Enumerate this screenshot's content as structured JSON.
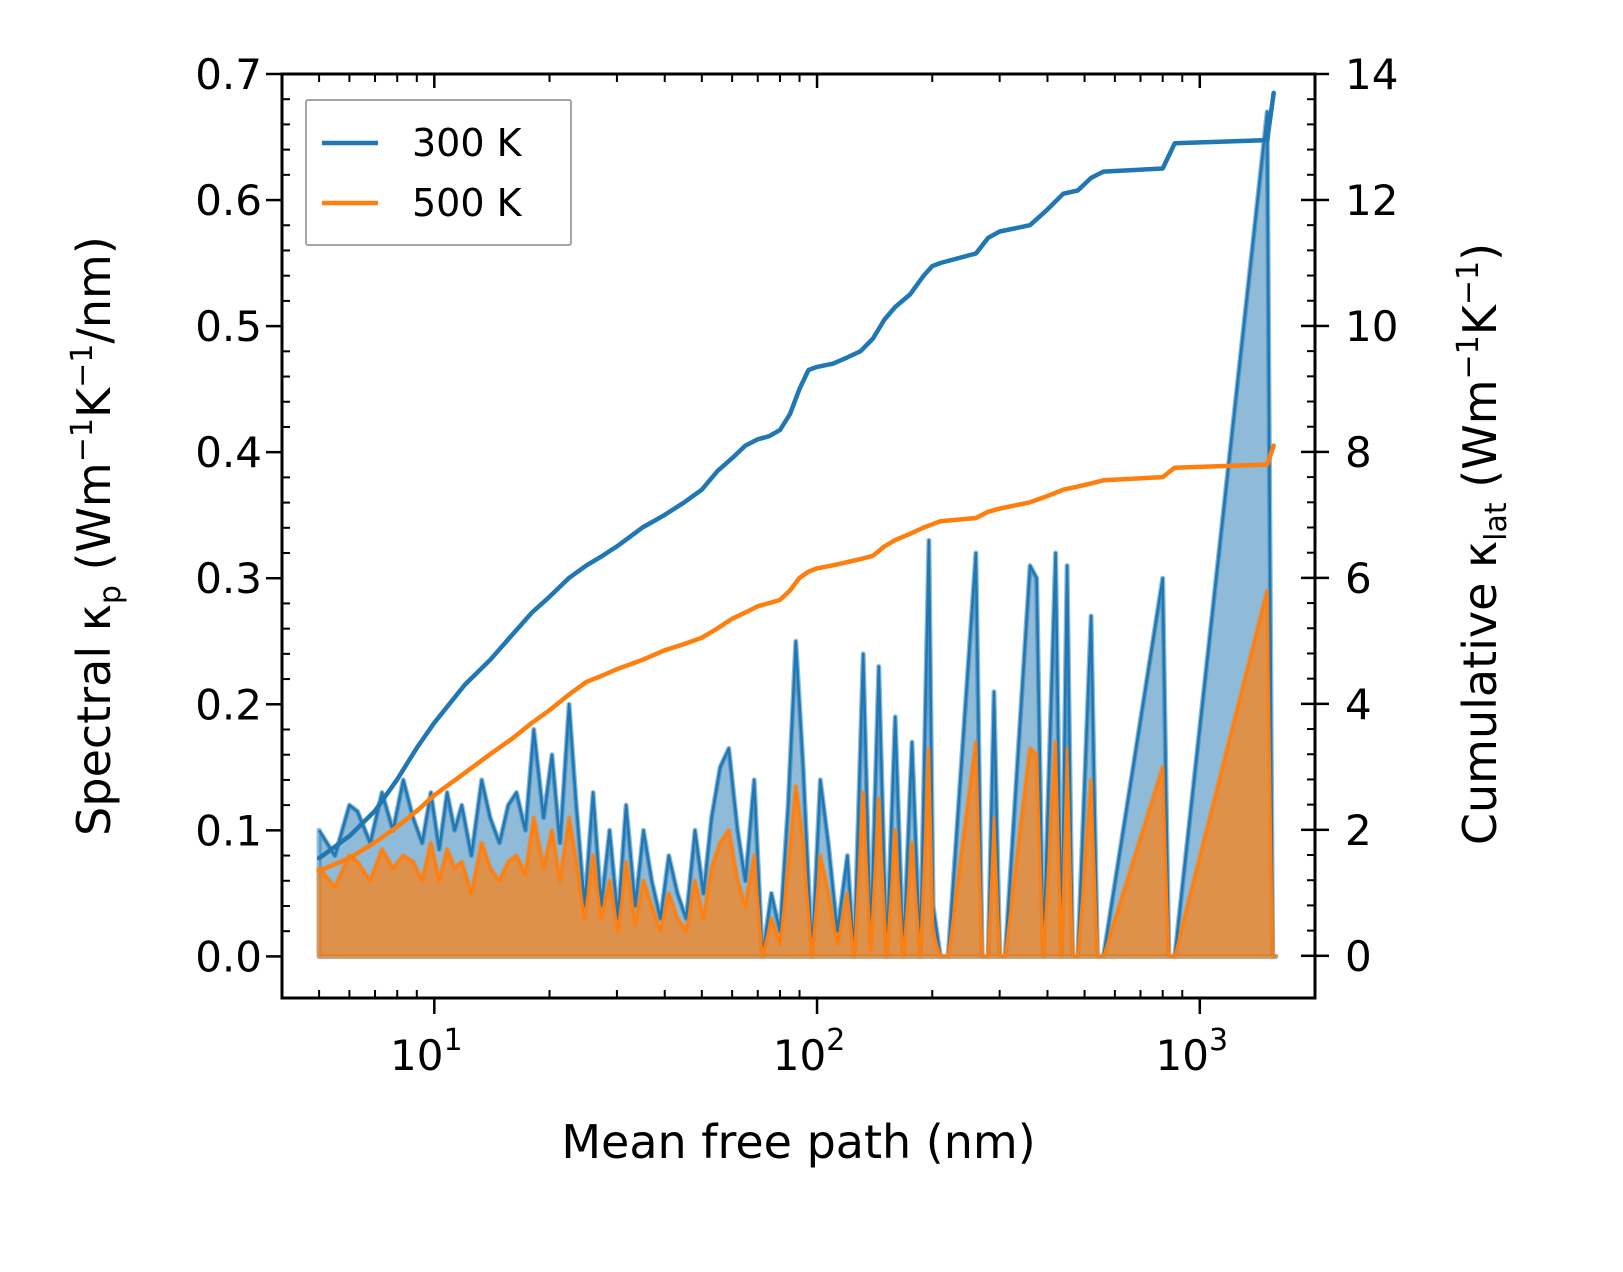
{
  "chart_data": {
    "type": "line",
    "title": "",
    "xlabel": "Mean free path (nm)",
    "ylabel_left": {
      "main": "Spectral κ",
      "sub": "p",
      "unit_open": " (Wm",
      "sup1": "−1",
      "unit_mid": "K",
      "sup2": "−1",
      "unit_close": "/nm)"
    },
    "ylabel_right": {
      "main": "Cumulative κ",
      "sub": "lat",
      "unit_open": " (Wm",
      "sup1": "−1",
      "unit_mid": "K",
      "sup2": "−1",
      "unit_close": ")"
    },
    "xscale": "log",
    "xlim": [
      4,
      2000
    ],
    "ylim_left": [
      -0.033,
      0.7
    ],
    "ylim_right": [
      -0.67,
      14
    ],
    "x_ticks": [
      {
        "value": 10,
        "base": "10",
        "exp": "1"
      },
      {
        "value": 100,
        "base": "10",
        "exp": "2"
      },
      {
        "value": 1000,
        "base": "10",
        "exp": "3"
      }
    ],
    "y_ticks_left": [
      {
        "value": 0.0,
        "label": "0.0"
      },
      {
        "value": 0.1,
        "label": "0.1"
      },
      {
        "value": 0.2,
        "label": "0.2"
      },
      {
        "value": 0.3,
        "label": "0.3"
      },
      {
        "value": 0.4,
        "label": "0.4"
      },
      {
        "value": 0.5,
        "label": "0.5"
      },
      {
        "value": 0.6,
        "label": "0.6"
      },
      {
        "value": 0.7,
        "label": "0.7"
      }
    ],
    "y_ticks_right": [
      {
        "value": 0,
        "label": "0"
      },
      {
        "value": 2,
        "label": "2"
      },
      {
        "value": 4,
        "label": "4"
      },
      {
        "value": 6,
        "label": "6"
      },
      {
        "value": 8,
        "label": "8"
      },
      {
        "value": 10,
        "label": "10"
      },
      {
        "value": 12,
        "label": "12"
      },
      {
        "value": 14,
        "label": "14"
      }
    ],
    "legend": {
      "location": "top-left",
      "entries": [
        {
          "name": "300 K",
          "color": "#1f77b4"
        },
        {
          "name": "500 K",
          "color": "#ff7f0e"
        }
      ]
    },
    "spectral_series": [
      {
        "name": "300 K",
        "color": "#1f77b4",
        "axis": "left",
        "x": [
          5.0,
          5.5,
          6.0,
          6.3,
          6.8,
          7.3,
          7.8,
          8.3,
          8.8,
          9.3,
          9.8,
          10.3,
          10.8,
          11.3,
          11.8,
          12.5,
          13.3,
          14.0,
          14.8,
          15.6,
          16.4,
          17.3,
          18.2,
          19.3,
          20.3,
          21.3,
          22.5,
          23.5,
          24.7,
          26.0,
          27.3,
          28.7,
          30.2,
          31.7,
          33.5,
          35.2,
          37.0,
          39.0,
          41.0,
          43.2,
          45.5,
          48.0,
          50.5,
          53.0,
          55.8,
          58.8,
          62.0,
          65.0,
          68.5,
          72.0,
          76.0,
          80.0,
          84.0,
          88.0,
          92.0,
          97.0,
          102.0,
          107.0,
          113.0,
          120.0,
          125.0,
          132.0,
          138.0,
          145.0,
          152.0,
          160.0,
          168.0,
          177.0,
          186.0,
          196.0,
          201.0,
          210.0,
          220.0,
          260.0,
          270.0,
          280.0,
          290.0,
          300.0,
          310.0,
          360.0,
          375.0,
          390.0,
          420.0,
          435.0,
          450.0,
          465.0,
          480.0,
          520.0,
          540.0,
          560.0,
          800.0,
          830.0,
          860.0,
          1500.0,
          1550.0,
          1580.0
        ],
        "values": [
          0.1,
          0.08,
          0.12,
          0.115,
          0.09,
          0.13,
          0.1,
          0.14,
          0.11,
          0.09,
          0.13,
          0.085,
          0.13,
          0.1,
          0.12,
          0.08,
          0.14,
          0.11,
          0.09,
          0.12,
          0.13,
          0.1,
          0.18,
          0.11,
          0.16,
          0.09,
          0.2,
          0.12,
          0.04,
          0.13,
          0.04,
          0.1,
          0.03,
          0.12,
          0.04,
          0.1,
          0.06,
          0.03,
          0.08,
          0.05,
          0.03,
          0.1,
          0.05,
          0.11,
          0.15,
          0.165,
          0.1,
          0.06,
          0.14,
          0.0,
          0.05,
          0.02,
          0.12,
          0.25,
          0.15,
          0.0,
          0.14,
          0.09,
          0.02,
          0.08,
          0.0,
          0.24,
          0.01,
          0.23,
          0.0,
          0.19,
          0.0,
          0.17,
          0.0,
          0.33,
          0.04,
          0.0,
          0.0,
          0.32,
          0.0,
          0.0,
          0.21,
          0.0,
          0.0,
          0.31,
          0.3,
          0.0,
          0.32,
          0.0,
          0.31,
          0.0,
          0.0,
          0.27,
          0.0,
          0.0,
          0.3,
          0.0,
          0.0,
          0.67,
          0.0,
          0.0
        ]
      },
      {
        "name": "500 K",
        "color": "#ff7f0e",
        "axis": "left",
        "x": [
          5.0,
          5.5,
          6.0,
          6.3,
          6.8,
          7.3,
          7.8,
          8.3,
          8.8,
          9.3,
          9.8,
          10.3,
          10.8,
          11.3,
          11.8,
          12.5,
          13.3,
          14.0,
          14.8,
          15.6,
          16.4,
          17.3,
          18.2,
          19.3,
          20.3,
          21.3,
          22.5,
          23.5,
          24.7,
          26.0,
          27.3,
          28.7,
          30.2,
          31.7,
          33.5,
          35.2,
          37.0,
          39.0,
          41.0,
          43.2,
          45.5,
          48.0,
          50.5,
          53.0,
          55.8,
          58.8,
          62.0,
          65.0,
          68.5,
          72.0,
          76.0,
          80.0,
          84.0,
          88.0,
          92.0,
          97.0,
          102.0,
          107.0,
          113.0,
          120.0,
          125.0,
          132.0,
          138.0,
          145.0,
          152.0,
          160.0,
          168.0,
          177.0,
          186.0,
          196.0,
          201.0,
          210.0,
          220.0,
          260.0,
          270.0,
          280.0,
          290.0,
          300.0,
          310.0,
          360.0,
          375.0,
          390.0,
          420.0,
          435.0,
          450.0,
          465.0,
          480.0,
          520.0,
          540.0,
          560.0,
          800.0,
          830.0,
          860.0,
          1500.0,
          1550.0,
          1580.0
        ],
        "values": [
          0.07,
          0.055,
          0.08,
          0.075,
          0.06,
          0.085,
          0.07,
          0.08,
          0.075,
          0.06,
          0.09,
          0.06,
          0.085,
          0.07,
          0.075,
          0.05,
          0.09,
          0.07,
          0.06,
          0.075,
          0.08,
          0.065,
          0.11,
          0.07,
          0.1,
          0.06,
          0.11,
          0.075,
          0.03,
          0.08,
          0.03,
          0.06,
          0.02,
          0.075,
          0.025,
          0.06,
          0.04,
          0.02,
          0.05,
          0.03,
          0.02,
          0.06,
          0.03,
          0.07,
          0.09,
          0.1,
          0.06,
          0.04,
          0.08,
          0.0,
          0.03,
          0.01,
          0.07,
          0.135,
          0.09,
          0.0,
          0.08,
          0.05,
          0.01,
          0.05,
          0.0,
          0.13,
          0.005,
          0.125,
          0.0,
          0.1,
          0.0,
          0.09,
          0.0,
          0.165,
          0.02,
          0.0,
          0.0,
          0.17,
          0.0,
          0.0,
          0.11,
          0.0,
          0.0,
          0.165,
          0.16,
          0.0,
          0.17,
          0.0,
          0.165,
          0.0,
          0.0,
          0.14,
          0.0,
          0.0,
          0.15,
          0.0,
          0.0,
          0.29,
          0.0,
          0.0
        ]
      }
    ],
    "cumulative_series": [
      {
        "name": "300 K",
        "color": "#1f77b4",
        "axis": "right",
        "x": [
          5.0,
          6.0,
          7.0,
          8.0,
          9.0,
          10.0,
          12.0,
          14.0,
          16.0,
          18.0,
          20.0,
          22.5,
          25.0,
          27.5,
          30.0,
          35.0,
          40.0,
          45.0,
          50.0,
          55.0,
          60.0,
          65.0,
          70.0,
          75.0,
          80.0,
          85.0,
          90.0,
          95.0,
          100.0,
          110.0,
          120.0,
          130.0,
          140.0,
          150.0,
          160.0,
          175.0,
          190.0,
          200.0,
          210.0,
          260.0,
          280.0,
          300.0,
          360.0,
          400.0,
          440.0,
          480.0,
          520.0,
          560.0,
          800.0,
          860.0,
          1500.0,
          1560.0
        ],
        "values": [
          1.55,
          1.9,
          2.3,
          2.8,
          3.3,
          3.7,
          4.3,
          4.7,
          5.1,
          5.45,
          5.7,
          6.0,
          6.2,
          6.35,
          6.5,
          6.8,
          7.0,
          7.2,
          7.4,
          7.7,
          7.9,
          8.1,
          8.2,
          8.25,
          8.35,
          8.6,
          9.0,
          9.3,
          9.35,
          9.4,
          9.5,
          9.6,
          9.8,
          10.1,
          10.3,
          10.5,
          10.8,
          10.95,
          11.0,
          11.15,
          11.4,
          11.5,
          11.6,
          11.85,
          12.1,
          12.15,
          12.35,
          12.45,
          12.5,
          12.9,
          12.95,
          13.7
        ]
      },
      {
        "name": "500 K",
        "color": "#ff7f0e",
        "axis": "right",
        "x": [
          5.0,
          6.0,
          7.0,
          8.0,
          9.0,
          10.0,
          12.0,
          14.0,
          16.0,
          18.0,
          20.0,
          22.5,
          25.0,
          27.5,
          30.0,
          35.0,
          40.0,
          45.0,
          50.0,
          55.0,
          60.0,
          65.0,
          70.0,
          75.0,
          80.0,
          85.0,
          90.0,
          95.0,
          100.0,
          110.0,
          120.0,
          130.0,
          140.0,
          150.0,
          160.0,
          175.0,
          190.0,
          200.0,
          210.0,
          260.0,
          280.0,
          300.0,
          360.0,
          400.0,
          440.0,
          480.0,
          520.0,
          560.0,
          800.0,
          860.0,
          1500.0,
          1560.0
        ],
        "values": [
          1.35,
          1.55,
          1.8,
          2.05,
          2.3,
          2.55,
          2.9,
          3.2,
          3.45,
          3.7,
          3.9,
          4.15,
          4.35,
          4.45,
          4.55,
          4.7,
          4.85,
          4.95,
          5.05,
          5.2,
          5.35,
          5.45,
          5.55,
          5.6,
          5.65,
          5.8,
          6.0,
          6.1,
          6.15,
          6.2,
          6.25,
          6.3,
          6.35,
          6.5,
          6.6,
          6.7,
          6.8,
          6.85,
          6.9,
          6.95,
          7.05,
          7.1,
          7.2,
          7.3,
          7.4,
          7.45,
          7.5,
          7.55,
          7.6,
          7.75,
          7.8,
          8.1
        ]
      }
    ]
  }
}
